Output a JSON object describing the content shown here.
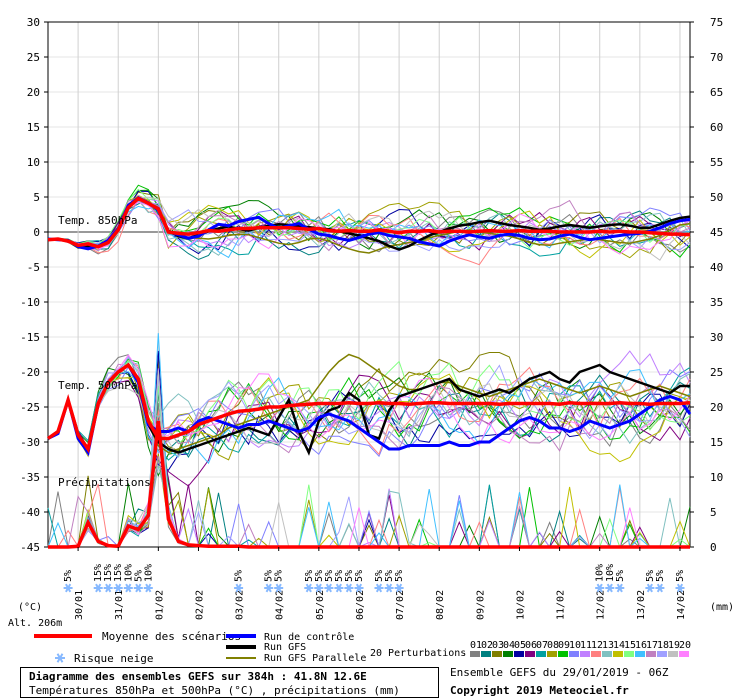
{
  "chart_data": {
    "type": "line",
    "title": "Diagramme des ensembles GEFS sur 384h : 41.8N 12.6E",
    "subtitle": "Températures 850hPa et 500hPa (°C) , précipitations (mm)",
    "left_unit": "(°C)",
    "right_unit": "(mm)",
    "altitude": "Alt. 206m",
    "run_info": "Ensemble GEFS du 29/01/2019 - 06Z",
    "copyright": "Copyright 2019 Meteociel.fr",
    "ylim_left": [
      -45,
      30
    ],
    "ylim_right": [
      0,
      75
    ],
    "ytick_left": [
      "30",
      "25",
      "20",
      "15",
      "10",
      "5",
      "0",
      "-5",
      "-10",
      "-15",
      "-20",
      "-25",
      "-30",
      "-35",
      "-40",
      "-45"
    ],
    "ytick_right": [
      "75",
      "70",
      "65",
      "60",
      "55",
      "50",
      "45",
      "40",
      "35",
      "30",
      "25",
      "20",
      "15",
      "10",
      "5",
      "0"
    ],
    "xlim_hours": [
      0,
      384
    ],
    "x_dates": [
      "30/01",
      "31/01",
      "01/02",
      "02/02",
      "03/02",
      "04/02",
      "05/02",
      "06/02",
      "07/02",
      "08/02",
      "09/02",
      "10/02",
      "11/02",
      "12/02",
      "13/02",
      "14/02"
    ],
    "x_date_hours": [
      18,
      42,
      66,
      90,
      114,
      138,
      162,
      186,
      210,
      234,
      258,
      282,
      306,
      330,
      354,
      378
    ],
    "section_labels": [
      "Temp. 850hPa",
      "Temp. 500hPa",
      "Précipitations"
    ],
    "snow_risk": [
      {
        "hour": 12,
        "pct": "5%"
      },
      {
        "hour": 30,
        "pct": "15%"
      },
      {
        "hour": 36,
        "pct": "15%"
      },
      {
        "hour": 42,
        "pct": "15%"
      },
      {
        "hour": 48,
        "pct": "10%"
      },
      {
        "hour": 54,
        "pct": "5%"
      },
      {
        "hour": 60,
        "pct": "10%"
      },
      {
        "hour": 114,
        "pct": "5%"
      },
      {
        "hour": 132,
        "pct": "5%"
      },
      {
        "hour": 138,
        "pct": "5%"
      },
      {
        "hour": 156,
        "pct": "5%"
      },
      {
        "hour": 162,
        "pct": "5%"
      },
      {
        "hour": 168,
        "pct": "5%"
      },
      {
        "hour": 174,
        "pct": "5%"
      },
      {
        "hour": 180,
        "pct": "5%"
      },
      {
        "hour": 186,
        "pct": "5%"
      },
      {
        "hour": 198,
        "pct": "5%"
      },
      {
        "hour": 204,
        "pct": "5%"
      },
      {
        "hour": 210,
        "pct": "5%"
      },
      {
        "hour": 330,
        "pct": "10%"
      },
      {
        "hour": 336,
        "pct": "10%"
      },
      {
        "hour": 342,
        "pct": "5%"
      },
      {
        "hour": 360,
        "pct": "5%"
      },
      {
        "hour": 366,
        "pct": "5%"
      },
      {
        "hour": 378,
        "pct": "5%"
      }
    ],
    "legend": {
      "mean": "Moyenne des scénarios",
      "snow": "Risque neige",
      "control": "Run de contrôle",
      "gfs": "Run GFS",
      "gfs_para": "Run GFS Parallele",
      "pert": "20 Perturbations",
      "pert_ids": [
        "01",
        "02",
        "03",
        "04",
        "05",
        "06",
        "07",
        "08",
        "09",
        "10",
        "11",
        "12",
        "13",
        "14",
        "15",
        "16",
        "17",
        "18",
        "19",
        "20"
      ]
    },
    "colors": {
      "mean": "#ff0000",
      "control": "#0000ff",
      "gfs": "#000000",
      "gfs_para": "#808000",
      "zero_line": "#999999",
      "snow": "#87b9ff",
      "pert": [
        "#808080",
        "#008080",
        "#808000",
        "#008000",
        "#0000a0",
        "#800080",
        "#00a0a0",
        "#a0a000",
        "#00c000",
        "#8080ff",
        "#c080ff",
        "#ff8080",
        "#80c0c0",
        "#c0c000",
        "#80ff80",
        "#40c0ff",
        "#c080c0",
        "#a0a0ff",
        "#c0c0c0",
        "#ff80ff"
      ]
    },
    "series": [
      {
        "name": "Moyenne des scénarios",
        "t850": [
          -1.1,
          -1.0,
          -1.3,
          -1.9,
          -1.7,
          -2.1,
          -1.5,
          0.3,
          3.5,
          4.8,
          4.1,
          3.3,
          0.0,
          -0.2,
          -0.3,
          -0.1,
          0.2,
          0.1,
          0.3,
          0.5,
          0.5,
          0.6,
          0.6,
          0.6,
          0.6,
          0.5,
          0.4,
          0.5,
          0.2,
          0.1,
          0.2,
          0.1,
          0.1,
          0.3,
          0.1,
          -0.1,
          0.1,
          0.1,
          0.2,
          0.0,
          0.1,
          0.1,
          0.0,
          0.1,
          0.2,
          0.1,
          0.1,
          0.2,
          0.1,
          0.1,
          0.1,
          0.0,
          0.0,
          0.0,
          0.0,
          0.1,
          0.0,
          0.1,
          0.0,
          0.0,
          -0.1,
          -0.2,
          -0.3,
          -0.3,
          -0.4
        ],
        "t500": [
          -29.5,
          -28.5,
          -24,
          -29,
          -31,
          -24.5,
          -21.5,
          -20,
          -19,
          -21,
          -27,
          -29.5,
          -29.5,
          -29,
          -28.5,
          -27.5,
          -27,
          -26.5,
          -26,
          -25.6,
          -25.5,
          -25.3,
          -25,
          -25,
          -24.8,
          -24.7,
          -24.6,
          -24.5,
          -24.5,
          -24.5,
          -24.4,
          -24.5,
          -24.5,
          -24.4,
          -24.5,
          -24.5,
          -24.6,
          -24.5,
          -24.4,
          -24.4,
          -24.5,
          -24.5,
          -24.5,
          -24.5,
          -24.5,
          -24.6,
          -24.5,
          -24.5,
          -24.5,
          -24.5,
          -24.5,
          -24.6,
          -24.4,
          -24.5,
          -24.5,
          -24.5,
          -24.5,
          -24.4,
          -24.5,
          -24.5,
          -24.6,
          -24.5,
          -24.5,
          -24.5,
          -24.4
        ],
        "precip": [
          0,
          0,
          0,
          0.1,
          3.5,
          0.8,
          0.2,
          0.1,
          3,
          2.5,
          4.5,
          18,
          4,
          0.8,
          0.3,
          0.2,
          0.1,
          0.1,
          0.1,
          0.1,
          0,
          0,
          0,
          0,
          0,
          0,
          0,
          0,
          0,
          0,
          0,
          0,
          0,
          0,
          0,
          0,
          0,
          0,
          0,
          0,
          0,
          0,
          0,
          0,
          0,
          0,
          0,
          0,
          0,
          0,
          0,
          0,
          0,
          0,
          0,
          0,
          0,
          0,
          0,
          0,
          0,
          0,
          0,
          0,
          0
        ]
      },
      {
        "name": "Run de contrôle",
        "t850": [
          -1,
          -1.1,
          -1.2,
          -2.1,
          -2.4,
          -2,
          -1.2,
          0.5,
          3.8,
          4.9,
          4.2,
          3.1,
          0.1,
          -0.4,
          -0.9,
          -0.6,
          0.3,
          1.1,
          0.9,
          1.5,
          1.8,
          2.1,
          1.2,
          0.5,
          0.9,
          1.2,
          0.4,
          -0.3,
          -0.5,
          -0.9,
          -1.2,
          -0.8,
          -0.3,
          -0.1,
          -0.5,
          -0.7,
          -0.9,
          -1.4,
          -1.7,
          -2,
          -1.3,
          -0.8,
          -0.4,
          -0.7,
          -0.9,
          -0.5,
          -0.3,
          -0.5,
          -0.9,
          -1.1,
          -1.0,
          -0.6,
          -0.3,
          -0.8,
          -1.1,
          -0.9,
          -0.7,
          -0.5,
          -0.3,
          -0.2,
          0.1,
          0.6,
          1.2,
          1.6,
          1.8
        ],
        "t500": [
          -29.5,
          -28.8,
          -24,
          -29.5,
          -31.5,
          -24.5,
          -21.5,
          -20,
          -19,
          -21.5,
          -27.5,
          -28.5,
          -28.5,
          -28,
          -28.5,
          -27,
          -26.5,
          -27,
          -27.5,
          -28,
          -27.5,
          -27.5,
          -27,
          -27.5,
          -28,
          -28.5,
          -28,
          -26.5,
          -26,
          -26.5,
          -27,
          -28,
          -29,
          -30,
          -31,
          -31,
          -30.5,
          -30.5,
          -30.5,
          -30.5,
          -30,
          -30.5,
          -30.5,
          -30,
          -30,
          -29,
          -28,
          -27,
          -26.5,
          -27,
          -28,
          -28,
          -28.5,
          -28,
          -27,
          -27.5,
          -28,
          -27.5,
          -27,
          -26,
          -25,
          -24,
          -23.5,
          -24,
          -26
        ]
      },
      {
        "name": "Run GFS",
        "t850": [
          -1.1,
          -1,
          -1.3,
          -2,
          -2,
          -2.1,
          -1.3,
          0.4,
          3.6,
          4.9,
          4.1,
          3.4,
          0.2,
          -0.6,
          -0.9,
          -0.4,
          0.1,
          0.5,
          0.8,
          0.4,
          0.2,
          0.6,
          0.9,
          1.1,
          1.0,
          0.8,
          0.7,
          0.5,
          0.4,
          0.1,
          -0.2,
          -0.5,
          -0.9,
          -1.3,
          -2.0,
          -2.5,
          -2.0,
          -1.2,
          -0.5,
          0.0,
          0.5,
          0.9,
          1.1,
          1.4,
          1.6,
          1.3,
          1.0,
          0.8,
          0.6,
          0.3,
          0.5,
          0.8,
          1.0,
          0.8,
          0.6,
          0.8,
          1.0,
          1.1,
          0.9,
          0.6,
          0.6,
          1.1,
          1.6,
          2.0,
          2.2
        ],
        "t500": [
          -29.5,
          -28.5,
          -24,
          -29,
          -31,
          -24.5,
          -21.5,
          -20,
          -19,
          -21.5,
          -27.5,
          -30,
          -31,
          -31.5,
          -31,
          -30.5,
          -30,
          -29.5,
          -29,
          -28.5,
          -28,
          -28.5,
          -29,
          -26.5,
          -24,
          -28.5,
          -31.5,
          -27,
          -25.5,
          -25,
          -23,
          -24,
          -29,
          -29.5,
          -25.5,
          -23.5,
          -23,
          -22.5,
          -22,
          -21.5,
          -21,
          -22.5,
          -23,
          -23.5,
          -23,
          -22.5,
          -23,
          -22,
          -21,
          -20.5,
          -20,
          -21,
          -21.5,
          -20,
          -19.5,
          -19,
          -20,
          -20.5,
          -21,
          -21.5,
          -22,
          -22.5,
          -23,
          -22,
          -22
        ]
      },
      {
        "name": "Run GFS Parallele",
        "t850": [
          -1,
          -0.9,
          -1.2,
          -1.9,
          -2.2,
          -2,
          -1.2,
          0.5,
          3.5,
          4.8,
          4.2,
          3.2,
          -0.1,
          -0.5,
          -0.8,
          -0.9,
          -1.0,
          -0.8,
          -0.5,
          -0.3,
          -0.4,
          -0.8,
          -1.2,
          -1.6,
          -1.8,
          -1.5,
          -1.0,
          -0.9,
          -1.3,
          -1.9,
          -2.4,
          -2.8,
          -3.0,
          -2.5,
          -2.0,
          -1.8,
          -1.5,
          -1.2,
          -0.8,
          -0.5,
          -0.2,
          0.1,
          0.3,
          0.0,
          -0.2,
          -0.4,
          -0.6,
          -1.0,
          -1.5,
          -1.8,
          -1.9,
          -1.6,
          -1.4,
          -1.2,
          -1.0,
          -1.1,
          -1.3,
          -1.5,
          -1.6,
          -1.3,
          -1.0,
          -0.5,
          0.3,
          1.0,
          1.2
        ],
        "t500": [
          -29.5,
          -28.5,
          -24,
          -29,
          -31.5,
          -24.5,
          -21.5,
          -20,
          -19,
          -21.5,
          -27.5,
          -30.5,
          -31.5,
          -31,
          -30.5,
          -30,
          -29.5,
          -29,
          -28,
          -27.5,
          -27,
          -26.5,
          -26,
          -25.5,
          -25,
          -24.5,
          -24,
          -22,
          -20,
          -18.5,
          -17.5,
          -18,
          -19,
          -20,
          -21,
          -22,
          -22.5,
          -22.5,
          -22,
          -21.5,
          -21.5,
          -22,
          -22.5,
          -23,
          -23.5,
          -23,
          -22.5,
          -22,
          -21.5,
          -21,
          -21.5,
          -22,
          -22.5,
          -23,
          -22.5,
          -22,
          -22.5,
          -23,
          -23.5,
          -23,
          -22.5,
          -22,
          -22.5,
          -23,
          -23.5
        ]
      }
    ]
  }
}
